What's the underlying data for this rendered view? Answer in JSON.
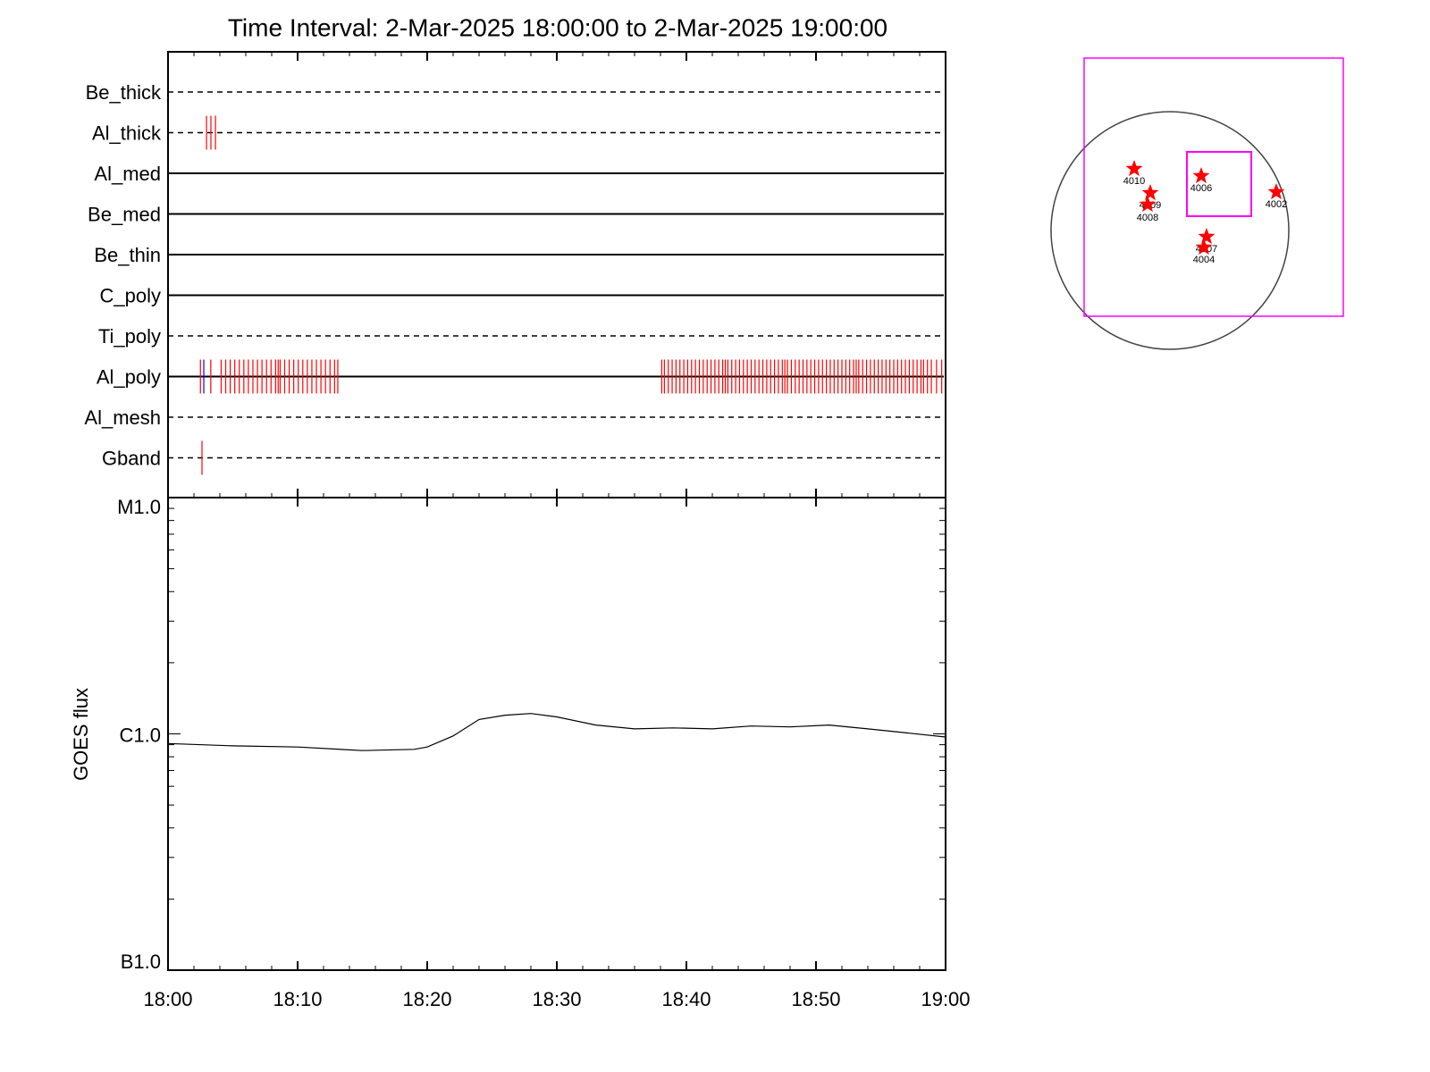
{
  "chart_data": [
    {
      "type": "timeline",
      "title": "Time Interval:  2-Mar-2025 18:00:00 to  2-Mar-2025 19:00:00",
      "xlim": [
        0,
        60
      ],
      "filters": [
        {
          "label": "Be_thick",
          "style": "dashed",
          "events": []
        },
        {
          "label": "Al_thick",
          "style": "dashed",
          "events": [
            {
              "color": "#ff0000",
              "x": [
                2.97,
                3.31,
                3.66
              ]
            }
          ]
        },
        {
          "label": "Al_med",
          "style": "solid",
          "events": []
        },
        {
          "label": "Be_med",
          "style": "solid",
          "events": []
        },
        {
          "label": "Be_thin",
          "style": "solid",
          "events": []
        },
        {
          "label": "C_poly",
          "style": "solid",
          "events": []
        },
        {
          "label": "Ti_poly",
          "style": "dashed",
          "events": []
        },
        {
          "label": "Al_poly",
          "style": "solid",
          "events": [
            {
              "color": "#0000ff",
              "x": [
                2.76
              ]
            },
            {
              "color": "#ff0000",
              "x": [
                2.5,
                3.3,
                4.1,
                4.45,
                4.8,
                5.15,
                5.5,
                5.85,
                6.2,
                6.55,
                6.9,
                7.25,
                7.6,
                7.95,
                8.3,
                8.5,
                8.65,
                9.0,
                9.35,
                9.7,
                10.05,
                10.4,
                10.75,
                11.1,
                11.45,
                11.8,
                12.15,
                12.5,
                12.85,
                13.1,
                38.1,
                38.3,
                38.6,
                38.9,
                39.2,
                39.5,
                39.8,
                40.1,
                40.4,
                40.7,
                41.0,
                41.3,
                41.6,
                41.9,
                42.2,
                42.5,
                42.8,
                43.0,
                43.2,
                43.5,
                43.8,
                44.1,
                44.4,
                44.7,
                45.0,
                45.3,
                45.6,
                45.9,
                46.2,
                46.5,
                46.8,
                47.1,
                47.4,
                47.6,
                47.8,
                48.1,
                48.4,
                48.7,
                49.0,
                49.3,
                49.6,
                49.9,
                50.2,
                50.5,
                50.8,
                51.1,
                51.4,
                51.7,
                52.0,
                52.3,
                52.6,
                52.9,
                53.1,
                53.3,
                53.6,
                53.9,
                54.2,
                54.5,
                54.8,
                55.1,
                55.4,
                55.7,
                56.0,
                56.3,
                56.6,
                56.9,
                57.2,
                57.5,
                57.8,
                58.1,
                58.3,
                58.6,
                58.9,
                59.3,
                59.7
              ]
            }
          ]
        },
        {
          "label": "Al_mesh",
          "style": "dashed",
          "events": []
        },
        {
          "label": "Gband",
          "style": "dashed",
          "events": [
            {
              "color": "#ff0000",
              "x": [
                2.62
              ]
            }
          ]
        }
      ]
    },
    {
      "type": "line",
      "y_label": "GOES flux",
      "log_y": true,
      "xlim": [
        0,
        60
      ],
      "ylim": [
        1e-07,
        1e-05
      ],
      "xticks": [
        {
          "value": 0,
          "label": "18:00"
        },
        {
          "value": 10,
          "label": "18:10"
        },
        {
          "value": 20,
          "label": "18:20"
        },
        {
          "value": 30,
          "label": "18:30"
        },
        {
          "value": 40,
          "label": "18:40"
        },
        {
          "value": 50,
          "label": "18:50"
        },
        {
          "value": 60,
          "label": "19:00"
        }
      ],
      "yticks": [
        {
          "value": 1e-07,
          "label": "B1.0"
        },
        {
          "value": 1e-06,
          "label": "C1.0"
        },
        {
          "value": 1e-05,
          "label": "M1.0"
        }
      ],
      "x": [
        0,
        5,
        10,
        15,
        19,
        20,
        22,
        24,
        26,
        28,
        30,
        33,
        36,
        39,
        42,
        45,
        48,
        51,
        54,
        57,
        60
      ],
      "series": [
        {
          "color": "#000000",
          "values": [
            9.1e-07,
            8.9e-07,
            8.8e-07,
            8.5e-07,
            8.6e-07,
            8.8e-07,
            9.8e-07,
            1.15e-06,
            1.2e-06,
            1.22e-06,
            1.18e-06,
            1.09e-06,
            1.05e-06,
            1.06e-06,
            1.05e-06,
            1.08e-06,
            1.07e-06,
            1.09e-06,
            1.05e-06,
            1.01e-06,
            9.7e-07
          ]
        }
      ]
    }
  ],
  "map": {
    "regions": [
      "4010",
      "4009",
      "4008",
      "4006",
      "4002",
      "4007",
      "4004"
    ]
  }
}
